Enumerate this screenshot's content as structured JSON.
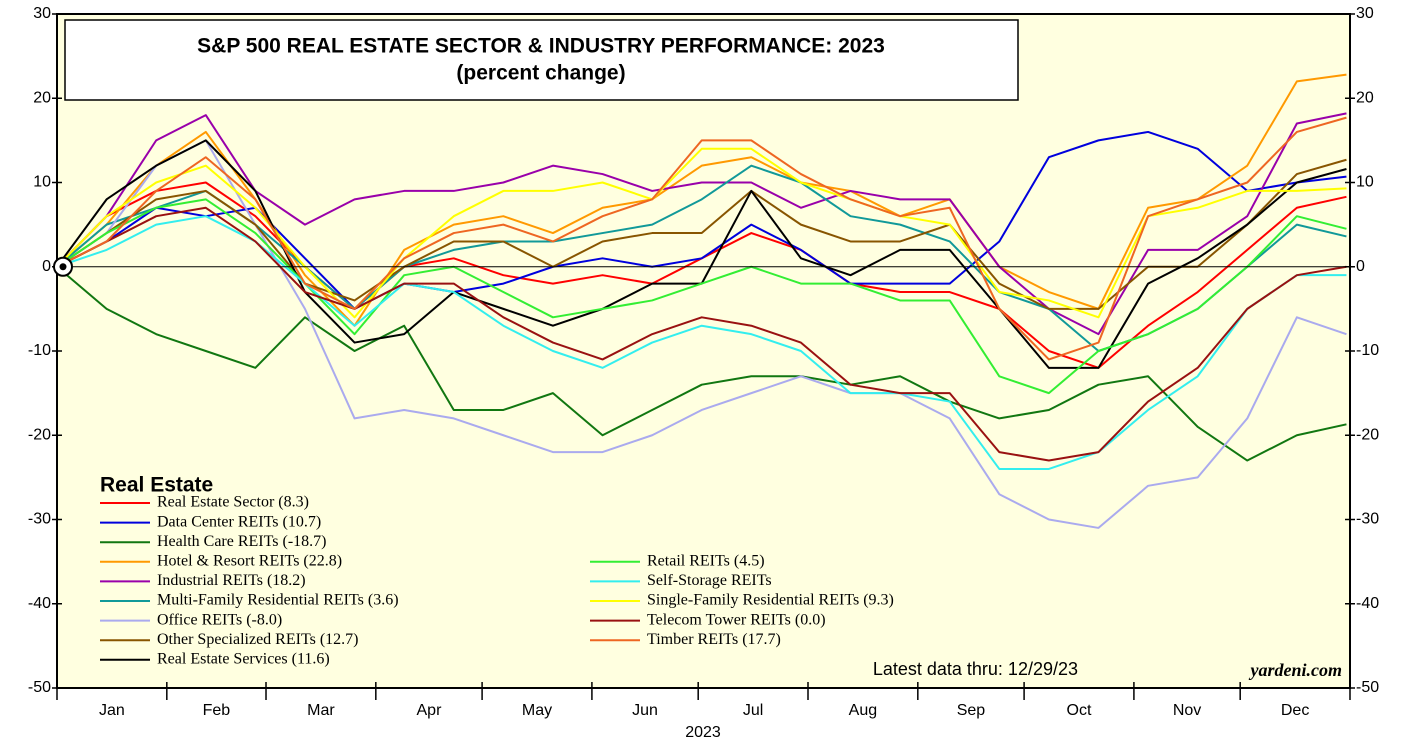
{
  "chart_data": {
    "type": "line",
    "title": "S&P 500 REAL ESTATE SECTOR & INDUSTRY PERFORMANCE: 2023",
    "subtitle": "(percent change)",
    "legend_title": "Real Estate",
    "annotation": "Latest data thru: 12/29/23",
    "source": "yardeni.com",
    "xlabel": "2023",
    "months": [
      "Jan",
      "Feb",
      "Mar",
      "Apr",
      "May",
      "Jun",
      "Jul",
      "Aug",
      "Sep",
      "Oct",
      "Nov",
      "Dec"
    ],
    "xlim": [
      0,
      365
    ],
    "xticks": [
      0,
      31,
      59,
      90,
      120,
      151,
      181,
      212,
      243,
      273,
      304,
      334,
      365
    ],
    "ylim": [
      -50,
      30
    ],
    "yticks": [
      -50,
      -40,
      -30,
      -20,
      -10,
      0,
      10,
      20,
      30
    ],
    "x": [
      0,
      14,
      28,
      42,
      56,
      70,
      84,
      98,
      112,
      126,
      140,
      154,
      168,
      182,
      196,
      210,
      224,
      238,
      252,
      266,
      280,
      294,
      308,
      322,
      336,
      350,
      364
    ],
    "series": [
      {
        "name": "Real Estate Sector (8.3)",
        "color": "#ff0000",
        "values": [
          0,
          6,
          9,
          10,
          6,
          0,
          -5,
          0,
          1,
          -1,
          -2,
          -1,
          -2,
          1,
          4,
          2,
          -2,
          -3,
          -3,
          -5,
          -10,
          -12,
          -7,
          -3,
          2,
          7,
          8.3
        ]
      },
      {
        "name": "Data Center REITs (10.7)",
        "color": "#0000dd",
        "values": [
          0,
          3,
          7,
          6,
          7,
          1,
          -5,
          -2,
          -3,
          -2,
          0,
          1,
          0,
          1,
          5,
          2,
          -2,
          -2,
          -2,
          3,
          13,
          15,
          16,
          14,
          9,
          10,
          10.7
        ]
      },
      {
        "name": "Health Care REITs (-18.7)",
        "color": "#117711",
        "values": [
          0,
          -5,
          -8,
          -10,
          -12,
          -6,
          -10,
          -7,
          -17,
          -17,
          -15,
          -20,
          -17,
          -14,
          -13,
          -13,
          -14,
          -13,
          -16,
          -18,
          -17,
          -14,
          -13,
          -19,
          -23,
          -20,
          -18.7
        ]
      },
      {
        "name": "Hotel & Resort REITs (22.8)",
        "color": "#ff9900",
        "values": [
          0,
          5,
          12,
          16,
          8,
          -1,
          -7,
          2,
          5,
          6,
          4,
          7,
          8,
          12,
          13,
          10,
          9,
          6,
          8,
          0,
          -3,
          -5,
          7,
          8,
          12,
          22,
          22.8
        ]
      },
      {
        "name": "Industrial REITs (18.2)",
        "color": "#9900aa",
        "values": [
          0,
          6,
          15,
          18,
          9,
          5,
          8,
          9,
          9,
          10,
          12,
          11,
          9,
          10,
          10,
          7,
          9,
          8,
          8,
          0,
          -5,
          -8,
          2,
          2,
          6,
          17,
          18.2
        ]
      },
      {
        "name": "Multi-Family Residential REITs (3.6)",
        "color": "#119999",
        "values": [
          0,
          5,
          7,
          9,
          5,
          0,
          -5,
          0,
          2,
          3,
          3,
          4,
          5,
          8,
          12,
          10,
          6,
          5,
          3,
          -3,
          -5,
          -10,
          -8,
          -5,
          0,
          5,
          3.6
        ]
      },
      {
        "name": "Office REITs (-8.0)",
        "color": "#aaaaee",
        "values": [
          0,
          4,
          12,
          15,
          5,
          -5,
          -18,
          -17,
          -18,
          -20,
          -22,
          -22,
          -20,
          -17,
          -15,
          -13,
          -15,
          -15,
          -18,
          -27,
          -30,
          -31,
          -26,
          -25,
          -18,
          -6,
          -8
        ]
      },
      {
        "name": "Other Specialized REITs (12.7)",
        "color": "#885500",
        "values": [
          0,
          4,
          8,
          9,
          5,
          -2,
          -4,
          0,
          3,
          3,
          0,
          3,
          4,
          4,
          9,
          5,
          3,
          3,
          5,
          -2,
          -5,
          -5,
          0,
          0,
          5,
          11,
          12.7
        ]
      },
      {
        "name": "Real Estate Services (11.6)",
        "color": "#000000",
        "values": [
          0,
          8,
          12,
          15,
          9,
          -3,
          -9,
          -8,
          -3,
          -5,
          -7,
          -5,
          -2,
          -2,
          9,
          1,
          -1,
          2,
          2,
          -5,
          -12,
          -12,
          -2,
          1,
          5,
          10,
          11.6
        ]
      },
      {
        "name": "Retail REITs (4.5)",
        "color": "#33ee33",
        "values": [
          0,
          4,
          7,
          8,
          4,
          -2,
          -8,
          -1,
          0,
          -3,
          -6,
          -5,
          -4,
          -2,
          0,
          -2,
          -2,
          -4,
          -4,
          -13,
          -15,
          -10,
          -8,
          -5,
          0,
          6,
          4.5
        ]
      },
      {
        "name": "Self-Storage REITs",
        "color": "#33eeee",
        "values": [
          0,
          2,
          5,
          6,
          3,
          -2,
          -7,
          -2,
          -3,
          -7,
          -10,
          -12,
          -9,
          -7,
          -8,
          -10,
          -15,
          -15,
          -16,
          -24,
          -24,
          -22,
          -17,
          -13,
          -5,
          -1,
          -1
        ]
      },
      {
        "name": "Single-Family Residential REITs (9.3)",
        "color": "#ffff00",
        "values": [
          0,
          6,
          10,
          12,
          7,
          0,
          -6,
          1,
          6,
          9,
          9,
          10,
          8,
          14,
          14,
          10,
          8,
          6,
          5,
          -3,
          -4,
          -6,
          6,
          7,
          9,
          9,
          9.3
        ]
      },
      {
        "name": "Telecom Tower REITs (0.0)",
        "color": "#991111",
        "values": [
          0,
          3,
          6,
          7,
          3,
          -3,
          -5,
          -2,
          -2,
          -6,
          -9,
          -11,
          -8,
          -6,
          -7,
          -9,
          -14,
          -15,
          -15,
          -22,
          -23,
          -22,
          -16,
          -12,
          -5,
          -1,
          0
        ]
      },
      {
        "name": "Timber REITs (17.7)",
        "color": "#ee6622",
        "values": [
          0,
          3,
          9,
          13,
          8,
          -2,
          -5,
          1,
          4,
          5,
          3,
          6,
          8,
          15,
          15,
          11,
          8,
          6,
          7,
          -5,
          -11,
          -9,
          6,
          8,
          10,
          16,
          17.7
        ]
      }
    ]
  }
}
